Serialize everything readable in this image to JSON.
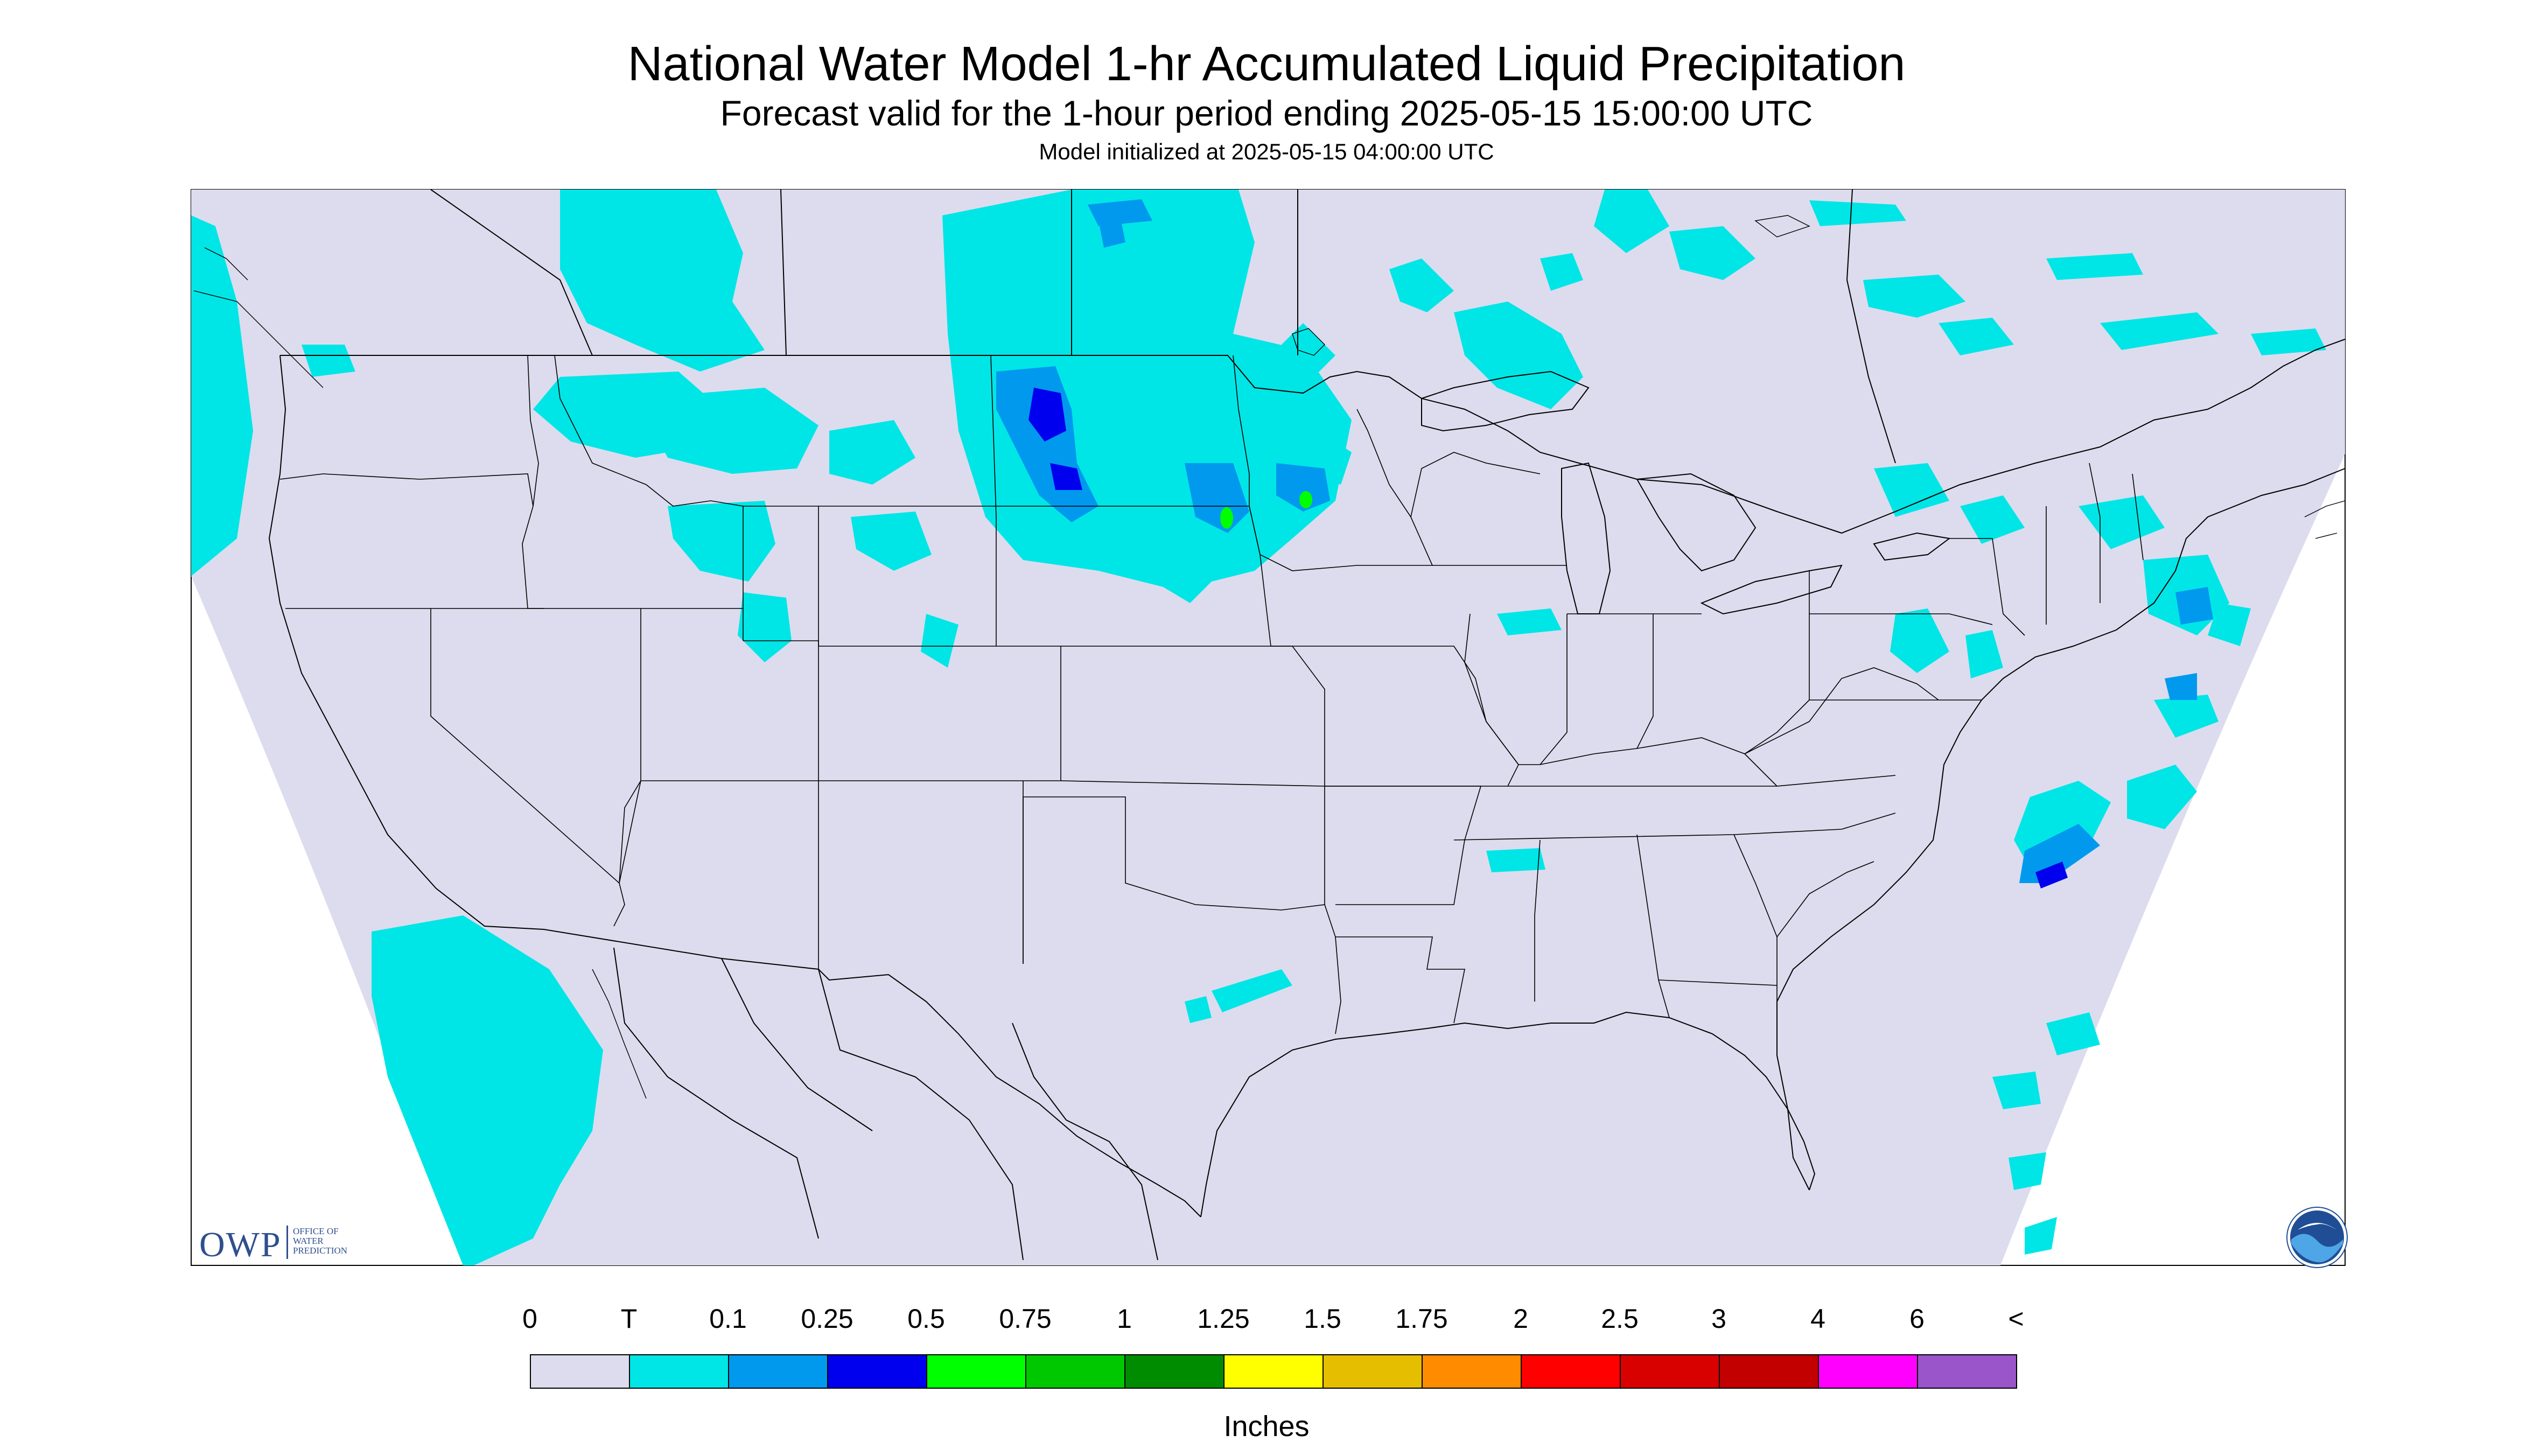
{
  "title": "National Water Model 1-hr Accumulated Liquid Precipitation",
  "subtitle": "Forecast valid for the 1-hour period ending 2025-05-15 15:00:00 UTC",
  "init_line": "Model initialized at 2025-05-15 04:00:00 UTC",
  "map": {
    "region": "Contiguous United States",
    "background_color": "#dcdcee",
    "boundary_line_color": "#000000"
  },
  "logos": {
    "owp": {
      "mark": "OWP",
      "text_lines": [
        "OFFICE OF",
        "WATER",
        "PREDICTION"
      ],
      "color": "#2f4f8f"
    },
    "noaa": {
      "icon": "noaa-logo-icon"
    }
  },
  "legend": {
    "units": "Inches",
    "labels": [
      "0",
      "T",
      "0.1",
      "0.25",
      "0.5",
      "0.75",
      "1",
      "1.25",
      "1.5",
      "1.75",
      "2",
      "2.5",
      "3",
      "4",
      "6",
      "<"
    ],
    "colors": [
      "#dcdcee",
      "#00e6e6",
      "#0099ee",
      "#0000ee",
      "#00ff00",
      "#00c800",
      "#008c00",
      "#ffff00",
      "#e6be00",
      "#ff8c00",
      "#ff0000",
      "#d90000",
      "#c20000",
      "#ff00ff",
      "#9955c9"
    ]
  }
}
